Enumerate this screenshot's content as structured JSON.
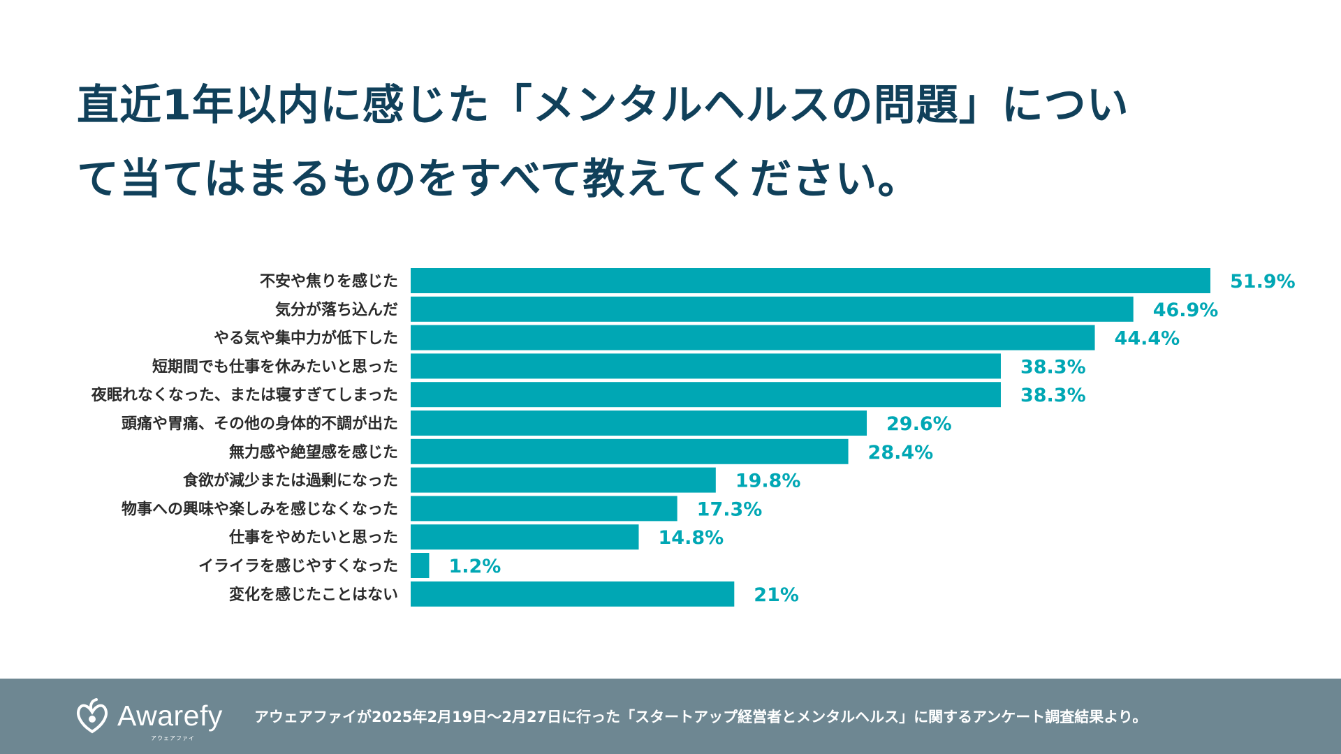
{
  "question": {
    "line1": "直近1年以内に感じた「メンタルヘルスの問題」につい",
    "line2": "て当てはまるものをすべて教えてください。"
  },
  "chart_data": {
    "type": "bar",
    "orientation": "horizontal",
    "title": "直近1年以内に感じた「メンタルヘルスの問題」について当てはまるものをすべて教えてください。",
    "categories": [
      "不安や焦りを感じた",
      "気分が落ち込んだ",
      "やる気や集中力が低下した",
      "短期間でも仕事を休みたいと思った",
      "夜眠れなくなった、または寝すぎてしまった",
      "頭痛や胃痛、その他の身体的不調が出た",
      "無力感や絶望感を感じた",
      "食欲が減少または過剰になった",
      "物事への興味や楽しみを感じなくなった",
      "仕事をやめたいと思った",
      "イライラを感じやすくなった",
      "変化を感じたことはない"
    ],
    "values": [
      51.9,
      46.9,
      44.4,
      38.3,
      38.3,
      29.6,
      28.4,
      19.8,
      17.3,
      14.8,
      1.2,
      21
    ],
    "value_labels": [
      "51.9%",
      "46.9%",
      "44.4%",
      "38.3%",
      "38.3%",
      "29.6%",
      "28.4%",
      "19.8%",
      "17.3%",
      "14.8%",
      "1.2%",
      "21%"
    ],
    "unit": "%",
    "xlim": [
      0,
      51.9
    ],
    "xlabel": "",
    "ylabel": "",
    "grid": false,
    "legend": "none",
    "bar_color": "#00a7b4"
  },
  "colors": {
    "title": "#10405a",
    "bar": "#00a7b4",
    "value_label": "#00a7b4",
    "footer_bg": "#6e8792"
  },
  "footer": {
    "logo_icon": "awarefy-logo-icon",
    "logo_text": "Awarefy",
    "logo_kana": "アウェアファイ",
    "note": "アウェアファイが2025年2月19日〜2月27日に行った「スタートアップ経営者とメンタルヘルス」に関するアンケート調査結果より。"
  }
}
